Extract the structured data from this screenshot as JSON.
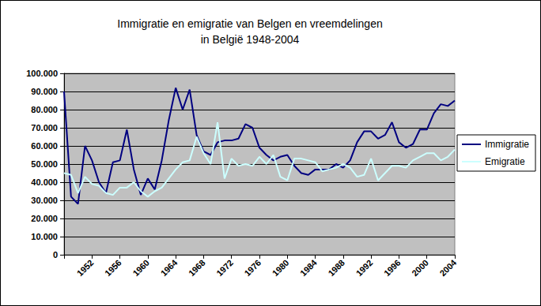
{
  "chart_data": {
    "type": "line",
    "title": "Immigratie en emigratie van Belgen en vreemdelingen\nin België 1948-2004",
    "categories": [
      null,
      null,
      null,
      null,
      "1952",
      null,
      null,
      null,
      "1956",
      null,
      null,
      null,
      "1960",
      null,
      null,
      null,
      "1964",
      null,
      null,
      null,
      "1968",
      null,
      null,
      null,
      "1972",
      null,
      null,
      null,
      "1976",
      null,
      null,
      null,
      "1980",
      null,
      null,
      null,
      "1984",
      null,
      null,
      null,
      "1988",
      null,
      null,
      null,
      "1992",
      null,
      null,
      null,
      "1996",
      null,
      null,
      null,
      "2000",
      null,
      null,
      null,
      "2004"
    ],
    "series": [
      {
        "name": "Immigratie",
        "color": "#000080",
        "values": [
          90000,
          32000,
          28000,
          60000,
          52000,
          40000,
          34000,
          51000,
          52000,
          69000,
          47000,
          33000,
          42000,
          36000,
          52000,
          74000,
          92000,
          80000,
          91000,
          66000,
          57000,
          55000,
          62000,
          63000,
          63000,
          64000,
          72000,
          70000,
          59000,
          55000,
          52000,
          54000,
          55000,
          49000,
          45000,
          44000,
          47000,
          47000,
          47000,
          50000,
          48000,
          52000,
          62000,
          68000,
          68000,
          64000,
          66000,
          73000,
          62000,
          59000,
          61000,
          69000,
          69000,
          78000,
          83000,
          82000,
          85000
        ]
      },
      {
        "name": "Emigratie",
        "color": "#ccffff",
        "values": [
          45000,
          44000,
          34000,
          43000,
          39000,
          38000,
          34000,
          33000,
          37000,
          37000,
          40000,
          35000,
          32000,
          35000,
          37000,
          42000,
          47000,
          51000,
          52000,
          65000,
          56000,
          50000,
          73000,
          42000,
          53000,
          49000,
          50000,
          49000,
          54000,
          50000,
          55000,
          43000,
          41000,
          53000,
          53000,
          52000,
          51000,
          46000,
          47000,
          48000,
          50000,
          48000,
          43000,
          44000,
          53000,
          41000,
          45000,
          49000,
          49000,
          48000,
          52000,
          54000,
          56000,
          56000,
          52000,
          54000,
          58000
        ]
      }
    ],
    "ylim": [
      0,
      100000
    ],
    "yticks": [
      0,
      {
        "value": 10000,
        "label": "10.000"
      },
      {
        "value": 20000,
        "label": "20.000"
      },
      {
        "value": 30000,
        "label": "30.000"
      },
      {
        "value": 40000,
        "label": "40.000"
      },
      {
        "value": 50000,
        "label": "50.000"
      },
      {
        "value": 60000,
        "label": "60.000"
      },
      {
        "value": 70000,
        "label": "70.000"
      },
      {
        "value": 80000,
        "label": "80.000"
      },
      {
        "value": 90000,
        "label": "90.000"
      },
      {
        "value": 100000,
        "label": "100.000"
      }
    ],
    "grid": true,
    "legend": "right"
  }
}
